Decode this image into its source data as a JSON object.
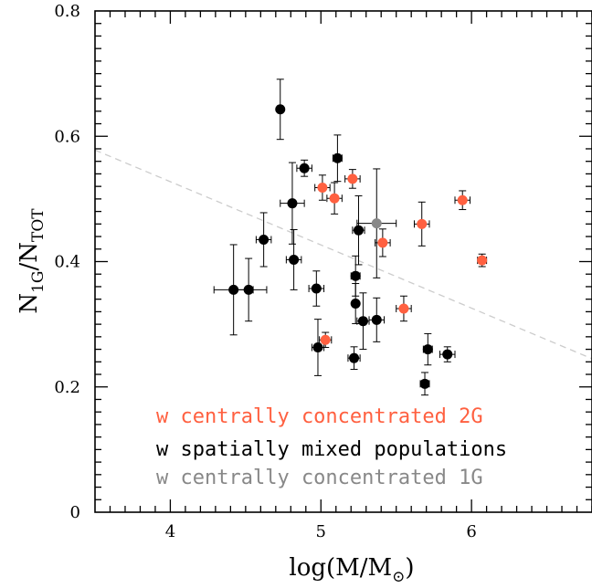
{
  "chart_data": {
    "type": "scatter",
    "xlabel": "log(M/M⊙)",
    "xlabel_main": "log(M/M",
    "xlabel_sub": "⊙",
    "xlabel_close": ")",
    "ylabel_main_1": "N",
    "ylabel_sub_1": "1G",
    "ylabel_slash": "/N",
    "ylabel_sub_2": "TOT",
    "xlim": [
      3.5,
      6.8
    ],
    "ylim": [
      0,
      0.8
    ],
    "x_ticks": [
      {
        "value": 4,
        "label": "4"
      },
      {
        "value": 5,
        "label": "5"
      },
      {
        "value": 6,
        "label": "6"
      }
    ],
    "y_ticks": [
      {
        "value": 0,
        "label": "0"
      },
      {
        "value": 0.2,
        "label": "0.2"
      },
      {
        "value": 0.4,
        "label": "0.4"
      },
      {
        "value": 0.6,
        "label": "0.6"
      },
      {
        "value": 0.8,
        "label": "0.8"
      }
    ],
    "trend_line": {
      "x": [
        3.5,
        6.8
      ],
      "y": [
        0.578,
        0.245
      ],
      "color": "#cccccc",
      "style": "dashed"
    },
    "series": [
      {
        "name": "w centrally concentrated 2G",
        "color": "#ff6040",
        "points": [
          {
            "x": 5.01,
            "y": 0.518,
            "xerr": 0.05,
            "yerr": 0.02
          },
          {
            "x": 5.09,
            "y": 0.501,
            "xerr": 0.05,
            "yerr": 0.025
          },
          {
            "x": 5.21,
            "y": 0.532,
            "xerr": 0.05,
            "yerr": 0.015
          },
          {
            "x": 5.41,
            "y": 0.43,
            "xerr": 0.05,
            "yerr": 0.022
          },
          {
            "x": 5.94,
            "y": 0.498,
            "xerr": 0.05,
            "yerr": 0.015
          },
          {
            "x": 5.67,
            "y": 0.46,
            "xerr": 0.05,
            "yerr": 0.035
          },
          {
            "x": 6.07,
            "y": 0.402,
            "xerr": 0.03,
            "yerr": 0.01
          },
          {
            "x": 5.55,
            "y": 0.325,
            "xerr": 0.05,
            "yerr": 0.02
          },
          {
            "x": 5.03,
            "y": 0.275,
            "xerr": 0.04,
            "yerr": 0.012
          }
        ]
      },
      {
        "name": "w spatially mixed populations",
        "color": "#000000",
        "points": [
          {
            "x": 4.73,
            "y": 0.643,
            "xerr": 0.0,
            "yerr": 0.048
          },
          {
            "x": 4.89,
            "y": 0.549,
            "xerr": 0.05,
            "yerr": 0.013
          },
          {
            "x": 5.11,
            "y": 0.565,
            "xerr": 0.03,
            "yerr": 0.037
          },
          {
            "x": 4.81,
            "y": 0.493,
            "xerr": 0.08,
            "yerr": 0.065
          },
          {
            "x": 5.25,
            "y": 0.45,
            "xerr": 0.04,
            "yerr": 0.055
          },
          {
            "x": 4.62,
            "y": 0.435,
            "xerr": 0.05,
            "yerr": 0.043
          },
          {
            "x": 4.82,
            "y": 0.403,
            "xerr": 0.05,
            "yerr": 0.048
          },
          {
            "x": 4.42,
            "y": 0.355,
            "xerr": 0.13,
            "yerr": 0.072
          },
          {
            "x": 4.52,
            "y": 0.355,
            "xerr": 0.12,
            "yerr": 0.05
          },
          {
            "x": 4.97,
            "y": 0.357,
            "xerr": 0.05,
            "yerr": 0.028
          },
          {
            "x": 5.23,
            "y": 0.377,
            "xerr": 0.03,
            "yerr": 0.032
          },
          {
            "x": 5.23,
            "y": 0.333,
            "xerr": 0.02,
            "yerr": 0.032
          },
          {
            "x": 5.28,
            "y": 0.305,
            "xerr": 0.04,
            "yerr": 0.045
          },
          {
            "x": 5.37,
            "y": 0.307,
            "xerr": 0.05,
            "yerr": 0.035
          },
          {
            "x": 4.98,
            "y": 0.263,
            "xerr": 0.04,
            "yerr": 0.045
          },
          {
            "x": 5.22,
            "y": 0.246,
            "xerr": 0.04,
            "yerr": 0.018
          },
          {
            "x": 5.71,
            "y": 0.26,
            "xerr": 0.03,
            "yerr": 0.025
          },
          {
            "x": 5.84,
            "y": 0.252,
            "xerr": 0.05,
            "yerr": 0.012
          },
          {
            "x": 5.69,
            "y": 0.205,
            "xerr": 0.03,
            "yerr": 0.018
          }
        ]
      },
      {
        "name": "w centrally concentrated 1G",
        "color": "#888888",
        "points": [
          {
            "x": 5.37,
            "y": 0.461,
            "xerr": 0.13,
            "yerr": 0.087
          }
        ]
      }
    ],
    "legend": {
      "placement": "bottom-left",
      "entries": [
        {
          "label": "w centrally concentrated 2G",
          "color": "#ff6040"
        },
        {
          "label": "w spatially mixed populations",
          "color": "#000000"
        },
        {
          "label": "w centrally concentrated 1G",
          "color": "#888888"
        }
      ]
    }
  }
}
